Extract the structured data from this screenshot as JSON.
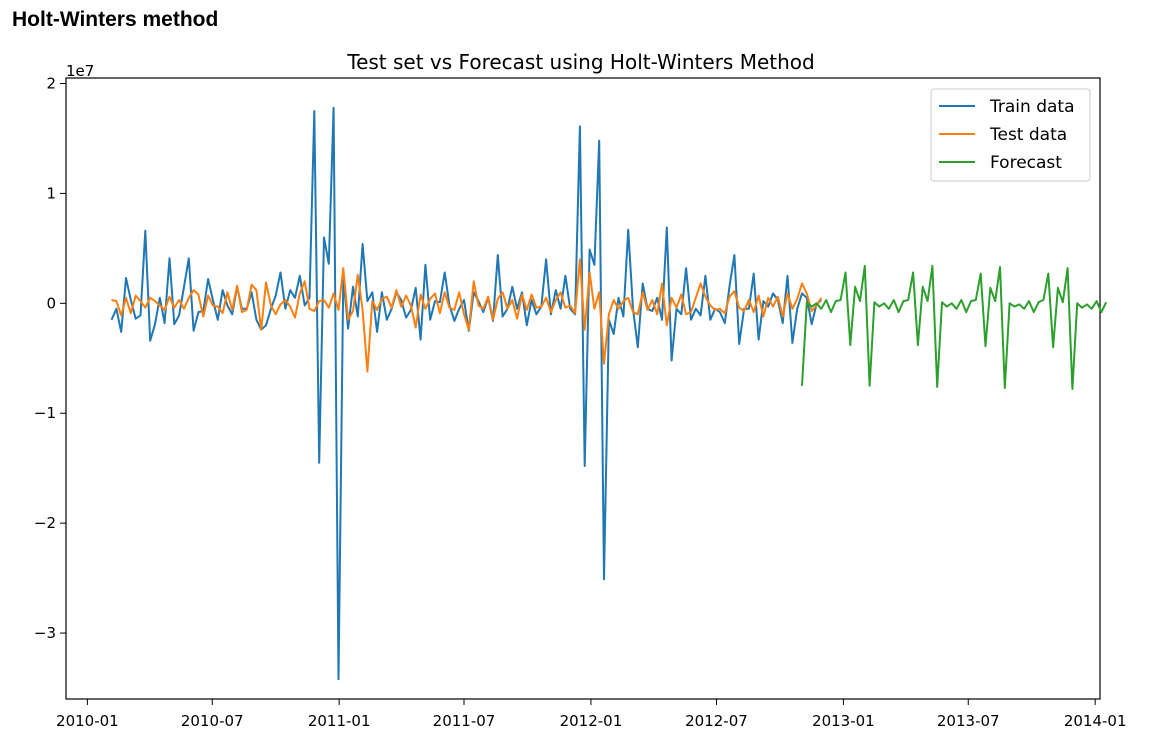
{
  "page_heading": "Holt-Winters method",
  "chart_data": {
    "type": "line",
    "title": "Test set vs Forecast using Holt-Winters Method",
    "xlabel": "",
    "ylabel": "",
    "y_scale_label": "1e7",
    "y_scale": 10000000,
    "xlim": [
      "2009-12-01",
      "2014-01-08"
    ],
    "ylim": [
      -36000000,
      20500000
    ],
    "x_ticks": [
      "2010-01",
      "2010-07",
      "2011-01",
      "2011-07",
      "2012-01",
      "2012-07",
      "2013-01",
      "2013-07",
      "2014-01"
    ],
    "y_ticks": [
      2,
      1,
      0,
      -1,
      -2,
      -3
    ],
    "y_tick_labels": [
      "2",
      "1",
      "0",
      "−1",
      "−2",
      "−3"
    ],
    "legend_position": "top-right",
    "series": [
      {
        "name": "Train data",
        "color": "#1f77b4",
        "start": "2010-02-05",
        "step_days": 7,
        "values": [
          -1500000,
          -500000,
          -2600000,
          2300000,
          300000,
          -1400000,
          -1100000,
          6600000,
          -3400000,
          -1900000,
          500000,
          -1800000,
          4100000,
          -1900000,
          -1100000,
          1500000,
          4100000,
          -2500000,
          -800000,
          -700000,
          2200000,
          300000,
          -1500000,
          1200000,
          -200000,
          -1000000,
          1500000,
          -500000,
          -500000,
          1000000,
          -1500000,
          -2400000,
          -2000000,
          -500000,
          700000,
          2800000,
          -500000,
          1200000,
          500000,
          2500000,
          -200000,
          500000,
          17500000,
          -14500000,
          6000000,
          3600000,
          17800000,
          -34200000,
          2400000,
          -2300000,
          1500000,
          -1200000,
          5400000,
          200000,
          1000000,
          -2600000,
          1000000,
          -1500000,
          -500000,
          1000000,
          300000,
          -1300000,
          -600000,
          1400000,
          -3300000,
          3500000,
          -1500000,
          200000,
          100000,
          2800000,
          -200000,
          -1600000,
          -500000,
          300000,
          -2500000,
          1000000,
          200000,
          -800000,
          500000,
          -1600000,
          4400000,
          -1200000,
          -500000,
          1500000,
          -500000,
          1000000,
          -2000000,
          300000,
          -1000000,
          -300000,
          4000000,
          -1000000,
          1200000,
          -500000,
          2500000,
          -500000,
          -1000000,
          16100000,
          -14800000,
          4900000,
          3500000,
          14800000,
          -25100000,
          -1500000,
          -2800000,
          500000,
          -1200000,
          6700000,
          -500000,
          -4000000,
          1800000,
          -500000,
          -700000,
          500000,
          -1500000,
          6900000,
          -5200000,
          -500000,
          -1000000,
          3200000,
          -1500000,
          -500000,
          -1100000,
          2500000,
          -1500000,
          -500000,
          -800000,
          -1800000,
          1600000,
          4400000,
          -3700000,
          -500000,
          -500000,
          2700000,
          -3300000,
          200000,
          -300000,
          900000,
          300000,
          -1800000,
          2500000,
          -3600000,
          -500000,
          900000,
          500000,
          -1900000,
          -100000,
          300000
        ],
        "data_labels": []
      },
      {
        "name": "Test data",
        "color": "#ff7f0e",
        "start": "2010-02-05",
        "step_days": 7,
        "values": [
          300000,
          200000,
          -1100000,
          500000,
          -900000,
          700000,
          200000,
          -400000,
          500000,
          200000,
          -200000,
          -600000,
          600000,
          -400000,
          300000,
          -500000,
          500000,
          1200000,
          800000,
          -1200000,
          700000,
          -200000,
          -300000,
          -900000,
          1000000,
          -600000,
          1600000,
          -800000,
          -600000,
          1700000,
          1200000,
          -2400000,
          1900000,
          -200000,
          -1000000,
          -100000,
          300000,
          -300000,
          -1300000,
          900000,
          2000000,
          -500000,
          -700000,
          200000,
          300000,
          -400000,
          900000,
          -600000,
          3200000,
          -1500000,
          -700000,
          2600000,
          -600000,
          -6200000,
          200000,
          -600000,
          400000,
          600000,
          -400000,
          1200000,
          -300000,
          700000,
          -200000,
          -2200000,
          800000,
          -500000,
          400000,
          900000,
          -900000,
          1000000,
          -400000,
          -600000,
          1000000,
          -1000000,
          -2400000,
          2000000,
          -200000,
          -500000,
          600000,
          -1500000,
          400000,
          1000000,
          -500000,
          300000,
          -1400000,
          800000,
          -600000,
          800000,
          -400000,
          -300000,
          500000,
          -800000,
          300000,
          1000000,
          -400000,
          -200000,
          -900000,
          4000000,
          -2400000,
          2800000,
          -500000,
          1000000,
          -5500000,
          -1000000,
          300000,
          -500000,
          200000,
          500000,
          -800000,
          -1000000,
          1000000,
          -600000,
          300000,
          -1000000,
          1800000,
          -2000000,
          500000,
          -400000,
          800000,
          -1000000,
          -800000,
          500000,
          1800000,
          600000,
          -200000,
          -600000,
          -500000,
          -900000,
          600000,
          1100000,
          -400000,
          -700000,
          300000,
          -800000,
          700000,
          -1200000,
          500000,
          -300000,
          600000,
          -1200000,
          900000,
          -500000,
          400000,
          1800000,
          900000,
          -700000,
          -200000,
          500000
        ],
        "data_labels": []
      },
      {
        "name": "Forecast",
        "color": "#2ca02c",
        "start": "2012-11-02",
        "step_days": 7,
        "values": [
          -7500000,
          100000,
          -300000,
          0,
          -500000,
          300000,
          -800000,
          200000,
          300000,
          2800000,
          -3800000,
          1500000,
          200000,
          3400000,
          -7500000,
          100000,
          -300000,
          0,
          -500000,
          300000,
          -800000,
          200000,
          300000,
          2800000,
          -3800000,
          1500000,
          200000,
          3400000,
          -7600000,
          100000,
          -300000,
          0,
          -500000,
          300000,
          -800000,
          200000,
          300000,
          2700000,
          -3900000,
          1400000,
          200000,
          3300000,
          -7700000,
          0,
          -300000,
          -100000,
          -500000,
          200000,
          -800000,
          100000,
          300000,
          2700000,
          -4000000,
          1400000,
          100000,
          3200000,
          -7800000,
          0,
          -400000,
          -100000,
          -500000,
          200000,
          -800000,
          100000
        ]
      }
    ]
  }
}
